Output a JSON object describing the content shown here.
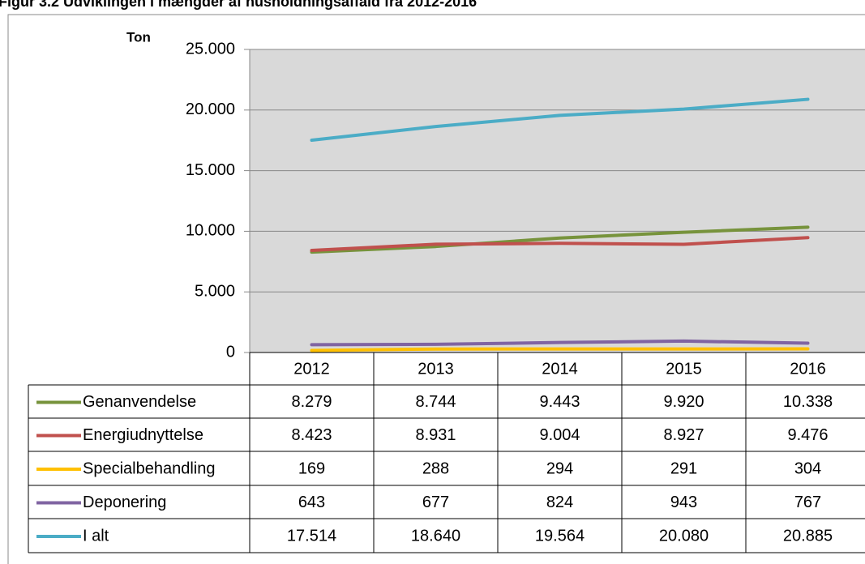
{
  "chart_data": {
    "type": "line",
    "title": "Figur 3.2 Udviklingen i mængder af husholdningsaffald fra 2012-2016",
    "y_label": "Ton",
    "categories": [
      "2012",
      "2013",
      "2014",
      "2015",
      "2016"
    ],
    "ylim": [
      0,
      25000
    ],
    "yticks": [
      0,
      {
        "value": 5000,
        "label": "5.000"
      },
      {
        "value": 10000,
        "label": "10.000"
      },
      {
        "value": 15000,
        "label": "15.000"
      },
      {
        "value": 20000,
        "label": "20.000"
      },
      {
        "value": 25000,
        "label": "25.000"
      }
    ],
    "grid": true,
    "series": [
      {
        "name": "Genanvendelse",
        "color": "#77933c",
        "values": [
          8279,
          8744,
          9443,
          9920,
          10338
        ],
        "value_labels": [
          "8.279",
          "8.744",
          "9.443",
          "9.920",
          "10.338"
        ]
      },
      {
        "name": "Energiudnyttelse",
        "color": "#c0504d",
        "values": [
          8423,
          8931,
          9004,
          8927,
          9476
        ],
        "value_labels": [
          "8.423",
          "8.931",
          "9.004",
          "8.927",
          "9.476"
        ]
      },
      {
        "name": "Specialbehandling",
        "color": "#ffc000",
        "values": [
          169,
          288,
          294,
          291,
          304
        ],
        "value_labels": [
          "169",
          "288",
          "294",
          "291",
          "304"
        ]
      },
      {
        "name": "Deponering",
        "color": "#8064a2",
        "values": [
          643,
          677,
          824,
          943,
          767
        ],
        "value_labels": [
          "643",
          "677",
          "824",
          "943",
          "767"
        ]
      },
      {
        "name": "I alt",
        "color": "#4bacc6",
        "values": [
          17514,
          18640,
          19564,
          20080,
          20885
        ],
        "value_labels": [
          "17.514",
          "18.640",
          "19.564",
          "20.080",
          "20.885"
        ]
      }
    ]
  }
}
